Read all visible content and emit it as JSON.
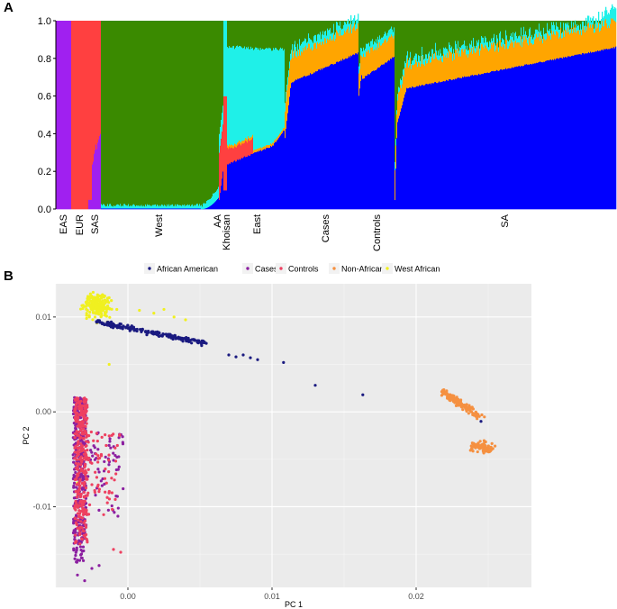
{
  "panels": {
    "a_label": "A",
    "b_label": "B"
  },
  "colors": {
    "dark_blue": "#0000ff",
    "purple": "#a020f0",
    "red": "#ff4040",
    "green": "#3a8a00",
    "cyan": "#1ff0e8",
    "orange": "#ffa500",
    "pca_african_american": "#1a1a80",
    "pca_cases": "#8b1fa0",
    "pca_controls": "#ee4060",
    "pca_non_african": "#f59040",
    "pca_west_african": "#f0f020",
    "panel_bg": "#ebebeb"
  },
  "chart_data": [
    {
      "type": "area",
      "subtype": "stacked-admixture",
      "title": "",
      "xlabel": "",
      "ylabel": "",
      "ylim": [
        0,
        1
      ],
      "y_ticks": [
        "0.0",
        "0.2",
        "0.4",
        "0.6",
        "0.8",
        "1.0"
      ],
      "groups": [
        "EAS",
        "EUR",
        "SAS",
        "West",
        "AA",
        "Khoisan",
        "East",
        "Cases",
        "Controls",
        "SA"
      ],
      "components": [
        "blue",
        "purple",
        "red",
        "green",
        "cyan",
        "orange"
      ],
      "group_profiles": [
        {
          "group": "EAS",
          "blue": 0.0,
          "purple": 1.0,
          "red": 0.0,
          "green": 0.0,
          "cyan": 0.0,
          "orange": 0.0
        },
        {
          "group": "EUR",
          "blue": 0.0,
          "purple": 0.0,
          "red": 1.0,
          "green": 0.0,
          "cyan": 0.0,
          "orange": 0.0
        },
        {
          "group": "SAS",
          "blue": 0.0,
          "purple": 0.35,
          "red": 0.65,
          "green": 0.0,
          "cyan": 0.0,
          "orange": 0.0
        },
        {
          "group": "West",
          "blue": 0.01,
          "purple": 0.0,
          "red": 0.0,
          "green": 0.97,
          "cyan": 0.02,
          "orange": 0.0
        },
        {
          "group": "AA",
          "blue": 0.1,
          "purple": 0.0,
          "red": 0.2,
          "green": 0.7,
          "cyan": 0.0,
          "orange": 0.0
        },
        {
          "group": "Khoisan",
          "blue": 0.1,
          "purple": 0.0,
          "red": 0.0,
          "green": 0.0,
          "cyan": 0.9,
          "orange": 0.0
        },
        {
          "group": "East",
          "blue": 0.28,
          "purple": 0.0,
          "red": 0.05,
          "green": 0.15,
          "cyan": 0.5,
          "orange": 0.02
        },
        {
          "group": "Cases",
          "blue": 0.65,
          "purple": 0.0,
          "red": 0.0,
          "green": 0.1,
          "cyan": 0.07,
          "orange": 0.18
        },
        {
          "group": "Controls",
          "blue": 0.7,
          "purple": 0.0,
          "red": 0.0,
          "green": 0.1,
          "cyan": 0.05,
          "orange": 0.15
        },
        {
          "group": "SA",
          "blue": 0.7,
          "purple": 0.0,
          "red": 0.0,
          "green": 0.08,
          "cyan": 0.04,
          "orange": 0.18
        }
      ]
    },
    {
      "type": "scatter",
      "title": "",
      "xlabel": "PC 1",
      "ylabel": "PC 2",
      "xlim": [
        -0.005,
        0.028
      ],
      "ylim": [
        -0.0185,
        0.0135
      ],
      "x_ticks": [
        {
          "value": 0.0,
          "label": "0.00"
        },
        {
          "value": 0.01,
          "label": "0.01"
        },
        {
          "value": 0.02,
          "label": "0.02"
        }
      ],
      "y_ticks": [
        {
          "value": 0.01,
          "label": "0.01"
        },
        {
          "value": 0.0,
          "label": "0.00"
        },
        {
          "value": -0.01,
          "label": "-0.01"
        }
      ],
      "grid": true,
      "legend_position": "top",
      "series": [
        {
          "name": "African American",
          "color_key": "pca_african_american",
          "clusters": [
            {
              "x": [
                -0.0022,
                0.0055
              ],
              "y": [
                0.0072,
                0.0095
              ],
              "trend": "diagonal",
              "n": 180
            }
          ],
          "points": [
            [
              0.007,
              0.006
            ],
            [
              0.0075,
              0.0058
            ],
            [
              0.008,
              0.006
            ],
            [
              0.0085,
              0.0057
            ],
            [
              0.009,
              0.0055
            ],
            [
              0.0108,
              0.0052
            ],
            [
              0.013,
              0.0028
            ],
            [
              0.0163,
              0.0018
            ],
            [
              0.0245,
              -0.001
            ]
          ]
        },
        {
          "name": "Cases",
          "color_key": "pca_cases",
          "clusters": [
            {
              "x": [
                -0.0038,
                -0.0003
              ],
              "y": [
                -0.016,
                0.0015
              ],
              "trend": "column",
              "n": 420
            }
          ],
          "points": [
            [
              -0.0035,
              -0.0172
            ],
            [
              -0.0025,
              -0.0165
            ],
            [
              -0.002,
              -0.0162
            ],
            [
              -0.003,
              -0.0178
            ]
          ]
        },
        {
          "name": "Controls",
          "color_key": "pca_controls",
          "clusters": [
            {
              "x": [
                -0.0037,
                -0.0005
              ],
              "y": [
                -0.014,
                0.0015
              ],
              "trend": "column",
              "n": 380
            }
          ],
          "points": [
            [
              -0.0005,
              -0.0148
            ],
            [
              -0.001,
              -0.0145
            ]
          ]
        },
        {
          "name": "Non-African",
          "color_key": "pca_non_african",
          "clusters": [
            {
              "x": [
                0.0217,
                0.0245
              ],
              "y": [
                -0.0012,
                0.0022
              ],
              "trend": "blob",
              "n": 140
            },
            {
              "x": [
                0.0237,
                0.0255
              ],
              "y": [
                -0.0045,
                -0.003
              ],
              "trend": "blob",
              "n": 90
            }
          ],
          "points": []
        },
        {
          "name": "West African",
          "color_key": "pca_west_african",
          "clusters": [
            {
              "x": [
                -0.0032,
                -0.001
              ],
              "y": [
                0.0097,
                0.0127
              ],
              "trend": "blob",
              "n": 220
            }
          ],
          "points": [
            [
              0.0008,
              0.0107
            ],
            [
              0.0018,
              0.0104
            ],
            [
              0.0025,
              0.0108
            ],
            [
              0.0032,
              0.01
            ],
            [
              0.004,
              0.0097
            ],
            [
              -0.0013,
              0.005
            ],
            [
              -0.0035,
              -0.0075
            ]
          ]
        }
      ]
    }
  ]
}
